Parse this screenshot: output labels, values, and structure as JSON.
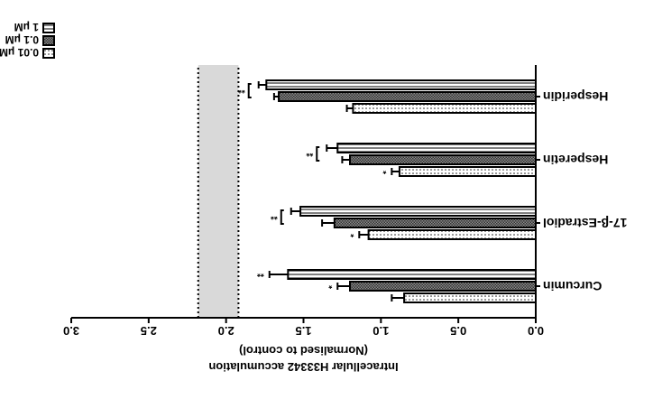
{
  "chart_data": {
    "type": "bar",
    "orientation": "horizontal",
    "rotated_180": true,
    "title": "",
    "categories": [
      "Curcumin",
      "17-β-Estradiol",
      "Hesperetin",
      "Hesperidin"
    ],
    "series": [
      {
        "name": "0.01 μM",
        "pattern": "dots",
        "values": [
          0.85,
          1.08,
          0.88,
          1.18
        ],
        "errors": [
          0.08,
          0.06,
          0.05,
          0.04
        ]
      },
      {
        "name": "0.1 μM",
        "pattern": "crosshatch",
        "values": [
          1.2,
          1.3,
          1.2,
          1.66
        ],
        "errors": [
          0.08,
          0.08,
          0.05,
          0.03
        ]
      },
      {
        "name": "1 μM",
        "pattern": "horizontal-lines",
        "values": [
          1.6,
          1.52,
          1.28,
          1.74
        ],
        "errors": [
          0.12,
          0.06,
          0.07,
          0.05
        ]
      }
    ],
    "significance": {
      "single": [
        "*",
        "*",
        "*",
        "*",
        "*",
        "*"
      ],
      "double": [
        "**",
        "**",
        "**",
        "**"
      ]
    },
    "xlabel": "Intracellular H33342 accumulation",
    "xlabel_line2": "(Normalised to control)",
    "xlim": [
      0,
      3.0
    ],
    "xticks": [
      "0.0",
      "0.5",
      "1.0",
      "1.5",
      "2.0",
      "2.5",
      "3.0"
    ],
    "reference_band": [
      1.92,
      2.18
    ],
    "legend_position": "top-left"
  }
}
